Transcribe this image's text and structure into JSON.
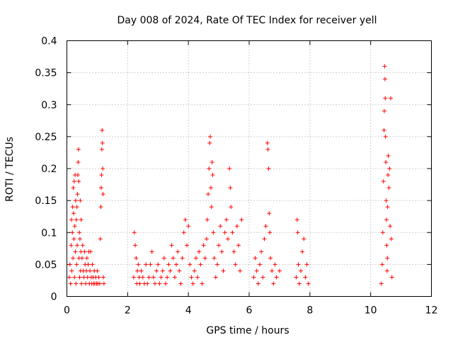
{
  "chart_data": {
    "type": "scatter",
    "title": "Day 008 of 2024, Rate Of TEC Index for receiver yell",
    "xlabel": "GPS time / hours",
    "ylabel": "ROTI / TECUs",
    "xlim": [
      0,
      12
    ],
    "ylim": [
      0,
      0.4
    ],
    "xticks": [
      0,
      2,
      4,
      6,
      8,
      10,
      12
    ],
    "yticks": [
      0,
      0.05,
      0.1,
      0.15,
      0.2,
      0.25,
      0.3,
      0.35,
      0.4
    ],
    "xtick_labels": [
      "0",
      "2",
      "4",
      "6",
      "8",
      "10",
      "12"
    ],
    "ytick_labels": [
      "0",
      "0.05",
      "0.1",
      "0.15",
      "0.2",
      "0.25",
      "0.3",
      "0.35",
      "0.4"
    ],
    "grid": true,
    "marker": "+",
    "color": "#ff0000",
    "series": [
      {
        "name": "ROTI",
        "points": [
          [
            0.08,
            0.03
          ],
          [
            0.1,
            0.05
          ],
          [
            0.12,
            0.02
          ],
          [
            0.14,
            0.08
          ],
          [
            0.15,
            0.12
          ],
          [
            0.16,
            0.04
          ],
          [
            0.18,
            0.1
          ],
          [
            0.19,
            0.14
          ],
          [
            0.2,
            0.06
          ],
          [
            0.21,
            0.17
          ],
          [
            0.22,
            0.13
          ],
          [
            0.23,
            0.09
          ],
          [
            0.24,
            0.18
          ],
          [
            0.25,
            0.03
          ],
          [
            0.26,
            0.11
          ],
          [
            0.27,
            0.19
          ],
          [
            0.28,
            0.07
          ],
          [
            0.29,
            0.15
          ],
          [
            0.3,
            0.02
          ],
          [
            0.31,
            0.12
          ],
          [
            0.32,
            0.05
          ],
          [
            0.33,
            0.14
          ],
          [
            0.34,
            0.08
          ],
          [
            0.35,
            0.16
          ],
          [
            0.36,
            0.19
          ],
          [
            0.37,
            0.21
          ],
          [
            0.38,
            0.23
          ],
          [
            0.39,
            0.18
          ],
          [
            0.4,
            0.06
          ],
          [
            0.41,
            0.1
          ],
          [
            0.42,
            0.03
          ],
          [
            0.43,
            0.09
          ],
          [
            0.44,
            0.15
          ],
          [
            0.45,
            0.04
          ],
          [
            0.46,
            0.07
          ],
          [
            0.47,
            0.12
          ],
          [
            0.48,
            0.02
          ],
          [
            0.5,
            0.06
          ],
          [
            0.52,
            0.08
          ],
          [
            0.54,
            0.04
          ],
          [
            0.56,
            0.03
          ],
          [
            0.58,
            0.07
          ],
          [
            0.6,
            0.05
          ],
          [
            0.62,
            0.02
          ],
          [
            0.64,
            0.04
          ],
          [
            0.66,
            0.06
          ],
          [
            0.68,
            0.03
          ],
          [
            0.7,
            0.05
          ],
          [
            0.72,
            0.07
          ],
          [
            0.74,
            0.02
          ],
          [
            0.76,
            0.04
          ],
          [
            0.78,
            0.07
          ],
          [
            0.8,
            0.03
          ],
          [
            0.82,
            0.02
          ],
          [
            0.84,
            0.05
          ],
          [
            0.86,
            0.03
          ],
          [
            0.88,
            0.02
          ],
          [
            0.9,
            0.04
          ],
          [
            0.92,
            0.02
          ],
          [
            0.95,
            0.03
          ],
          [
            0.98,
            0.02
          ],
          [
            1.0,
            0.04
          ],
          [
            1.02,
            0.02
          ],
          [
            1.05,
            0.03
          ],
          [
            1.08,
            0.02
          ],
          [
            1.1,
            0.09
          ],
          [
            1.12,
            0.14
          ],
          [
            1.13,
            0.17
          ],
          [
            1.14,
            0.19
          ],
          [
            1.15,
            0.23
          ],
          [
            1.16,
            0.26
          ],
          [
            1.17,
            0.24
          ],
          [
            1.18,
            0.2
          ],
          [
            1.19,
            0.16
          ],
          [
            1.2,
            0.03
          ],
          [
            1.22,
            0.02
          ],
          [
            2.2,
            0.03
          ],
          [
            2.22,
            0.1
          ],
          [
            2.25,
            0.08
          ],
          [
            2.28,
            0.06
          ],
          [
            2.3,
            0.02
          ],
          [
            2.32,
            0.04
          ],
          [
            2.35,
            0.05
          ],
          [
            2.38,
            0.03
          ],
          [
            2.4,
            0.02
          ],
          [
            2.45,
            0.04
          ],
          [
            2.5,
            0.03
          ],
          [
            2.55,
            0.02
          ],
          [
            2.6,
            0.05
          ],
          [
            2.65,
            0.02
          ],
          [
            2.7,
            0.03
          ],
          [
            2.75,
            0.05
          ],
          [
            2.8,
            0.07
          ],
          [
            2.85,
            0.03
          ],
          [
            2.9,
            0.02
          ],
          [
            2.95,
            0.04
          ],
          [
            3.0,
            0.05
          ],
          [
            3.05,
            0.02
          ],
          [
            3.1,
            0.03
          ],
          [
            3.15,
            0.04
          ],
          [
            3.2,
            0.06
          ],
          [
            3.25,
            0.02
          ],
          [
            3.3,
            0.03
          ],
          [
            3.35,
            0.05
          ],
          [
            3.4,
            0.04
          ],
          [
            3.45,
            0.08
          ],
          [
            3.5,
            0.06
          ],
          [
            3.55,
            0.03
          ],
          [
            3.6,
            0.05
          ],
          [
            3.65,
            0.07
          ],
          [
            3.7,
            0.04
          ],
          [
            3.75,
            0.02
          ],
          [
            3.8,
            0.06
          ],
          [
            3.85,
            0.1
          ],
          [
            3.9,
            0.12
          ],
          [
            3.95,
            0.08
          ],
          [
            4.0,
            0.11
          ],
          [
            4.05,
            0.05
          ],
          [
            4.1,
            0.03
          ],
          [
            4.15,
            0.02
          ],
          [
            4.2,
            0.04
          ],
          [
            4.25,
            0.06
          ],
          [
            4.3,
            0.03
          ],
          [
            4.35,
            0.07
          ],
          [
            4.4,
            0.05
          ],
          [
            4.45,
            0.02
          ],
          [
            4.5,
            0.08
          ],
          [
            4.55,
            0.06
          ],
          [
            4.6,
            0.09
          ],
          [
            4.62,
            0.12
          ],
          [
            4.65,
            0.16
          ],
          [
            4.68,
            0.2
          ],
          [
            4.7,
            0.24
          ],
          [
            4.72,
            0.25
          ],
          [
            4.74,
            0.17
          ],
          [
            4.76,
            0.14
          ],
          [
            4.78,
            0.21
          ],
          [
            4.8,
            0.19
          ],
          [
            4.82,
            0.1
          ],
          [
            4.85,
            0.06
          ],
          [
            4.9,
            0.03
          ],
          [
            4.95,
            0.05
          ],
          [
            5.0,
            0.08
          ],
          [
            5.05,
            0.11
          ],
          [
            5.1,
            0.07
          ],
          [
            5.15,
            0.04
          ],
          [
            5.2,
            0.1
          ],
          [
            5.25,
            0.12
          ],
          [
            5.3,
            0.09
          ],
          [
            5.35,
            0.2
          ],
          [
            5.38,
            0.17
          ],
          [
            5.4,
            0.14
          ],
          [
            5.45,
            0.1
          ],
          [
            5.5,
            0.07
          ],
          [
            5.55,
            0.05
          ],
          [
            5.6,
            0.11
          ],
          [
            5.65,
            0.08
          ],
          [
            5.7,
            0.04
          ],
          [
            5.75,
            0.12
          ],
          [
            6.15,
            0.03
          ],
          [
            6.2,
            0.06
          ],
          [
            6.25,
            0.04
          ],
          [
            6.3,
            0.02
          ],
          [
            6.35,
            0.05
          ],
          [
            6.4,
            0.07
          ],
          [
            6.45,
            0.03
          ],
          [
            6.5,
            0.09
          ],
          [
            6.55,
            0.11
          ],
          [
            6.6,
            0.24
          ],
          [
            6.62,
            0.23
          ],
          [
            6.64,
            0.2
          ],
          [
            6.66,
            0.13
          ],
          [
            6.68,
            0.1
          ],
          [
            6.7,
            0.06
          ],
          [
            6.75,
            0.04
          ],
          [
            6.8,
            0.02
          ],
          [
            6.85,
            0.05
          ],
          [
            6.9,
            0.03
          ],
          [
            7.0,
            0.04
          ],
          [
            7.55,
            0.03
          ],
          [
            7.58,
            0.12
          ],
          [
            7.6,
            0.1
          ],
          [
            7.62,
            0.05
          ],
          [
            7.65,
            0.02
          ],
          [
            7.7,
            0.04
          ],
          [
            7.75,
            0.07
          ],
          [
            7.8,
            0.09
          ],
          [
            7.85,
            0.03
          ],
          [
            7.9,
            0.05
          ],
          [
            7.95,
            0.02
          ],
          [
            10.35,
            0.02
          ],
          [
            10.38,
            0.05
          ],
          [
            10.4,
            0.1
          ],
          [
            10.42,
            0.18
          ],
          [
            10.44,
            0.26
          ],
          [
            10.45,
            0.29
          ],
          [
            10.46,
            0.36
          ],
          [
            10.47,
            0.34
          ],
          [
            10.48,
            0.31
          ],
          [
            10.49,
            0.25
          ],
          [
            10.5,
            0.21
          ],
          [
            10.51,
            0.15
          ],
          [
            10.52,
            0.12
          ],
          [
            10.53,
            0.08
          ],
          [
            10.54,
            0.04
          ],
          [
            10.55,
            0.06
          ],
          [
            10.56,
            0.14
          ],
          [
            10.57,
            0.19
          ],
          [
            10.58,
            0.22
          ],
          [
            10.6,
            0.17
          ],
          [
            10.62,
            0.2
          ],
          [
            10.64,
            0.11
          ],
          [
            10.66,
            0.31
          ],
          [
            10.68,
            0.09
          ],
          [
            10.7,
            0.03
          ]
        ]
      }
    ]
  }
}
